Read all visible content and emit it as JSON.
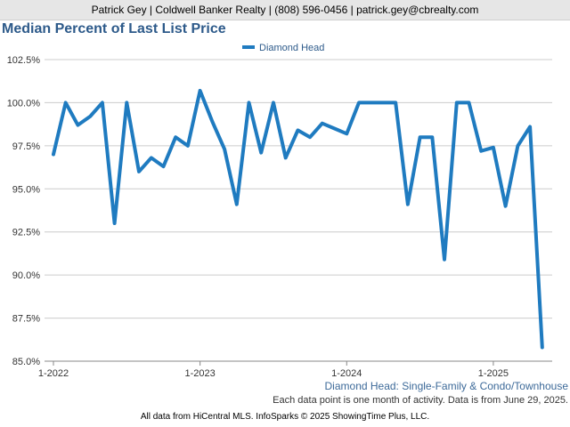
{
  "header": {
    "contact": "Patrick Gey | Coldwell Banker Realty | (808) 596-0456 | patrick.gey@cbrealty.com"
  },
  "chart_data": {
    "type": "line",
    "title": "Median Percent of Last List Price",
    "xlabel": "",
    "ylabel": "",
    "ylim": [
      85.0,
      102.5
    ],
    "yticks": [
      "85.0%",
      "87.5%",
      "90.0%",
      "92.5%",
      "95.0%",
      "97.5%",
      "100.0%",
      "102.5%"
    ],
    "ytick_values": [
      85.0,
      87.5,
      90.0,
      92.5,
      95.0,
      97.5,
      100.0,
      102.5
    ],
    "xticks": [
      "1-2022",
      "1-2023",
      "1-2024",
      "1-2025"
    ],
    "xtick_month_index": [
      0,
      12,
      24,
      36
    ],
    "grid": true,
    "legend_position": "top-center",
    "series": [
      {
        "name": "Diamond Head",
        "color": "#1f7bc0",
        "months": [
          "1-2022",
          "2-2022",
          "3-2022",
          "4-2022",
          "5-2022",
          "6-2022",
          "7-2022",
          "8-2022",
          "9-2022",
          "10-2022",
          "11-2022",
          "12-2022",
          "1-2023",
          "2-2023",
          "3-2023",
          "4-2023",
          "5-2023",
          "6-2023",
          "7-2023",
          "8-2023",
          "9-2023",
          "10-2023",
          "11-2023",
          "12-2023",
          "1-2024",
          "2-2024",
          "3-2024",
          "4-2024",
          "5-2024",
          "6-2024",
          "7-2024",
          "8-2024",
          "9-2024",
          "10-2024",
          "11-2024",
          "12-2024",
          "1-2025",
          "2-2025",
          "3-2025",
          "4-2025",
          "5-2025"
        ],
        "values": [
          97.0,
          100.0,
          98.7,
          99.2,
          100.0,
          93.0,
          100.0,
          96.0,
          96.8,
          96.3,
          98.0,
          97.5,
          100.7,
          98.9,
          97.3,
          94.1,
          100.0,
          97.1,
          100.0,
          96.8,
          98.4,
          98.0,
          98.8,
          98.5,
          98.2,
          100.0,
          100.0,
          100.0,
          100.0,
          94.1,
          98.0,
          98.0,
          90.9,
          100.0,
          100.0,
          97.2,
          97.4,
          94.0,
          97.5,
          98.6,
          85.8
        ]
      }
    ]
  },
  "subtitle": "Diamond Head: Single-Family & Condo/Townhouse",
  "footnote": "Each data point is one month of activity. Data is from June 29, 2025.",
  "source": "All data from HiCentral MLS. InfoSparks © 2025 ShowingTime Plus, LLC."
}
